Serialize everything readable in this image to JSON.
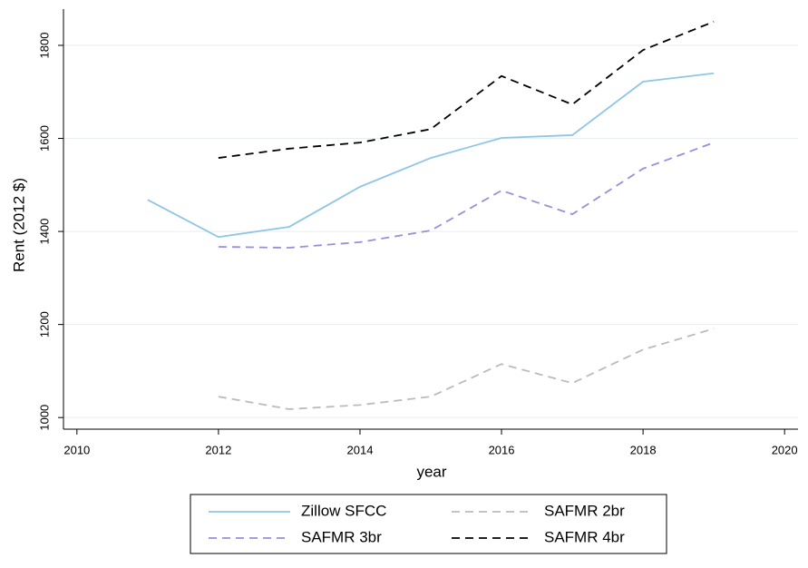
{
  "chart_data": {
    "type": "line",
    "x": [
      2011,
      2012,
      2013,
      2014,
      2015,
      2016,
      2017,
      2018,
      2019
    ],
    "series": [
      {
        "name": "Zillow SFCC",
        "color": "#8ec6e6",
        "dash": false,
        "values": [
          1468,
          1388,
          1410,
          1496,
          1558,
          1601,
          1607,
          1722,
          1740
        ]
      },
      {
        "name": "SAFMR 2br",
        "color": "#bbbbbb",
        "dash": true,
        "values": [
          null,
          1045,
          1018,
          1027,
          1045,
          1115,
          1074,
          1146,
          1191
        ]
      },
      {
        "name": "SAFMR 3br",
        "color": "#9a8ed8",
        "dash": true,
        "values": [
          null,
          1367,
          1365,
          1377,
          1402,
          1488,
          1437,
          1535,
          1591
        ]
      },
      {
        "name": "SAFMR 4br",
        "color": "#000000",
        "dash": true,
        "values": [
          null,
          1558,
          1578,
          1591,
          1620,
          1734,
          1673,
          1790,
          1851
        ]
      }
    ],
    "xlabel": "year",
    "ylabel": "Rent (2012 $)",
    "xlim": [
      2009.81,
      2020.19
    ],
    "xticks": [
      2010,
      2012,
      2014,
      2016,
      2018,
      2020
    ],
    "ylim": [
      975,
      1878
    ],
    "yticks": [
      1000,
      1200,
      1400,
      1600,
      1800
    ],
    "grid": true,
    "legend": "bottom"
  }
}
